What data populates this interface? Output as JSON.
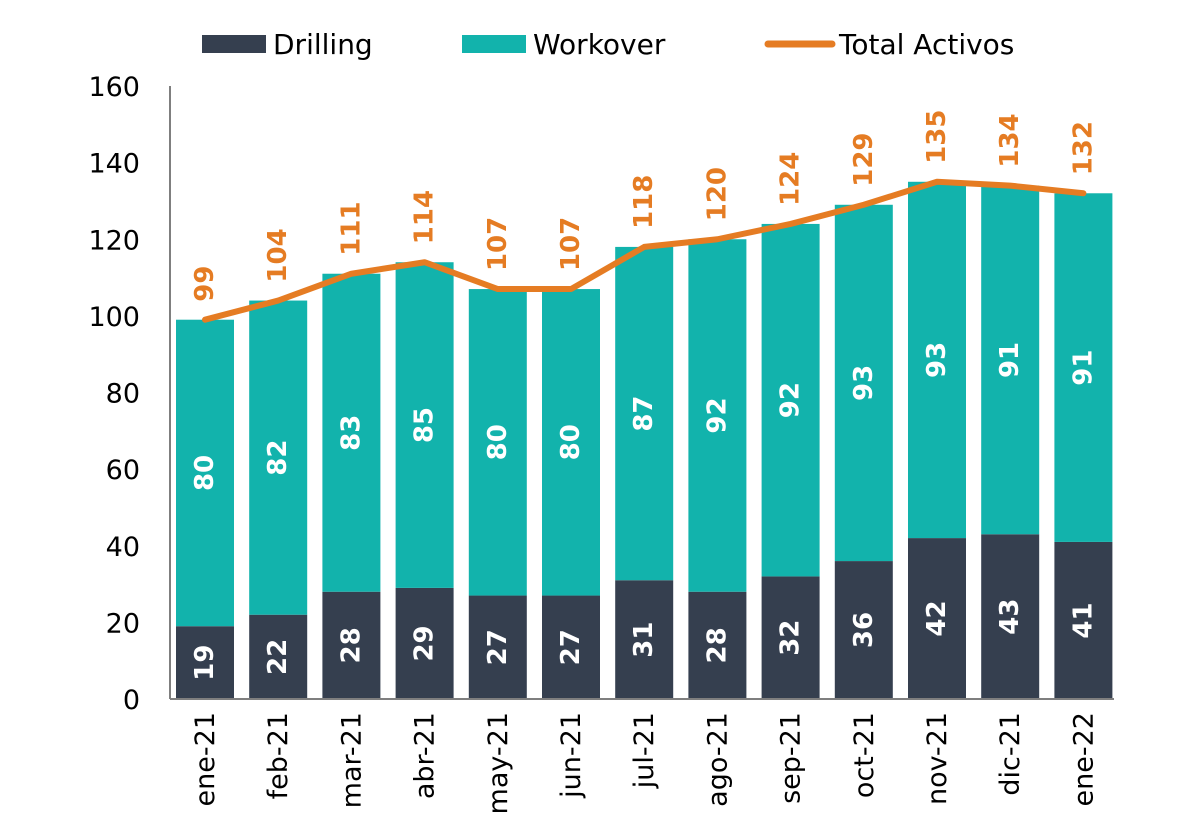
{
  "chart_data": {
    "type": "bar",
    "stacked": true,
    "categories": [
      "ene-21",
      "feb-21",
      "mar-21",
      "abr-21",
      "may-21",
      "jun-21",
      "jul-21",
      "ago-21",
      "sep-21",
      "oct-21",
      "nov-21",
      "dic-21",
      "ene-22"
    ],
    "series": [
      {
        "name": "Drilling",
        "kind": "bar",
        "color": "#353f4f",
        "values": [
          19,
          22,
          28,
          29,
          27,
          27,
          31,
          28,
          32,
          36,
          42,
          43,
          41
        ]
      },
      {
        "name": "Workover",
        "kind": "bar",
        "color": "#12b3ac",
        "values": [
          80,
          82,
          83,
          85,
          80,
          80,
          87,
          92,
          92,
          93,
          93,
          91,
          91
        ]
      },
      {
        "name": "Total Activos",
        "kind": "line",
        "color": "#e57c23",
        "values": [
          99,
          104,
          111,
          114,
          107,
          107,
          118,
          120,
          124,
          129,
          135,
          134,
          132
        ]
      }
    ],
    "ylim": [
      0,
      160
    ],
    "yticks": [
      "0",
      "20",
      "40",
      "60",
      "80",
      "100",
      "120",
      "140",
      "160"
    ],
    "legend_position": "top",
    "grid": false,
    "title": "",
    "xlabel": "",
    "ylabel": ""
  }
}
